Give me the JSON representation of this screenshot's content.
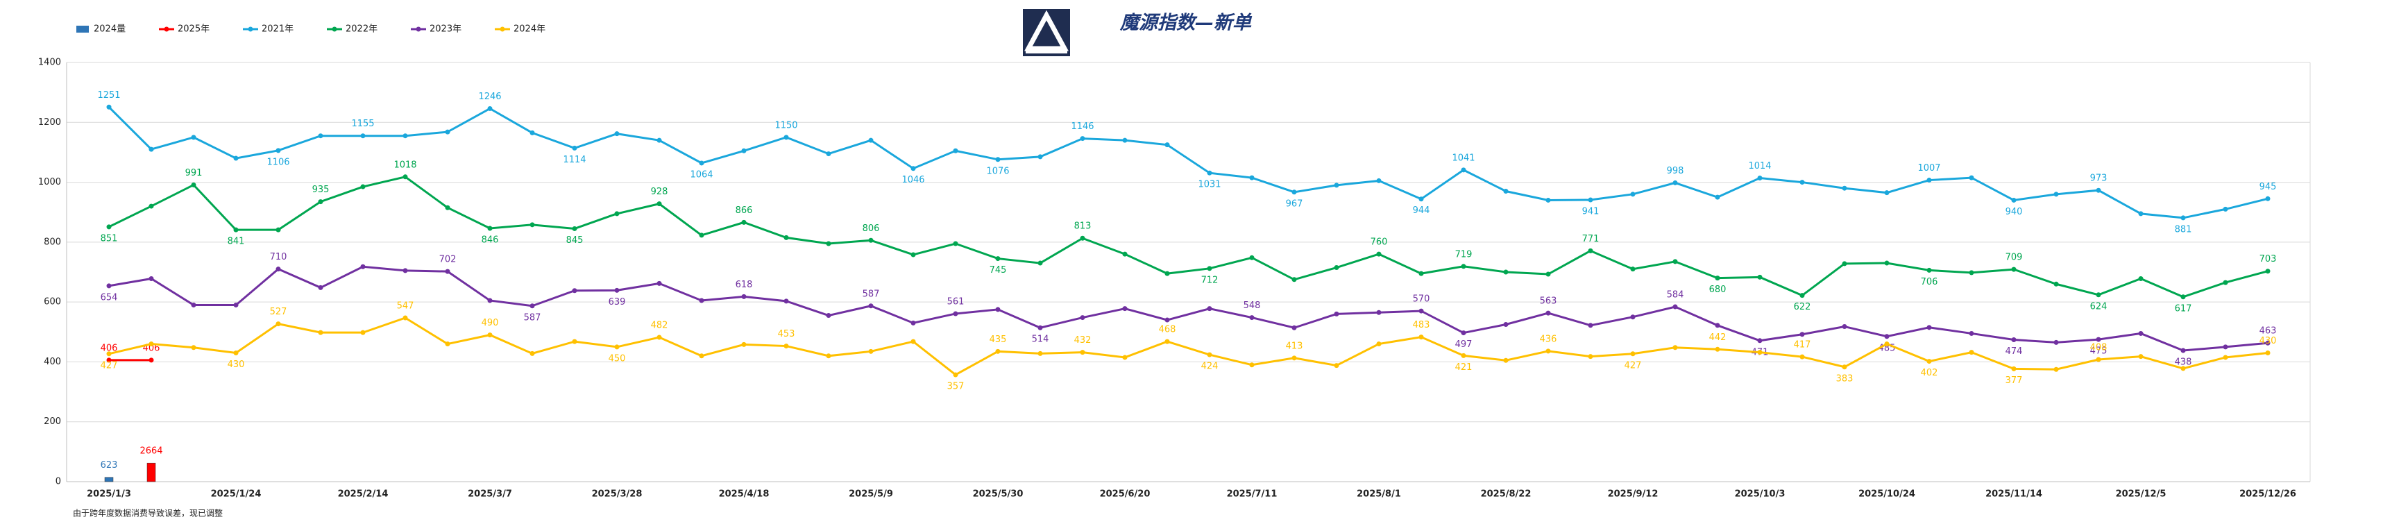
{
  "chart_data": {
    "type": "line",
    "title": "魔源指数—新单",
    "footnote": "由于跨年度数据消费导致误差，现已调整",
    "legend": "top-left",
    "grid": true,
    "categories": [
      "2025/1/3",
      null,
      null,
      "2025/1/24",
      null,
      null,
      "2025/2/14",
      null,
      null,
      "2025/3/7",
      null,
      null,
      "2025/3/28",
      null,
      null,
      "2025/4/18",
      null,
      null,
      "2025/5/9",
      null,
      null,
      "2025/5/30",
      null,
      null,
      "2025/6/20",
      null,
      null,
      "2025/7/11",
      null,
      null,
      "2025/8/1",
      null,
      null,
      "2025/8/22",
      null,
      null,
      "2025/9/12",
      null,
      null,
      "2025/10/3",
      null,
      null,
      "2025/10/24",
      null,
      null,
      "2025/11/14",
      null,
      null,
      "2025/12/5",
      null,
      null,
      "2025/12/26"
    ],
    "ylim": [
      0,
      1400
    ],
    "yticks": [
      0,
      200,
      400,
      600,
      800,
      1000,
      1200,
      1400
    ],
    "y2lim": [
      0,
      60000
    ],
    "series": [
      {
        "name": "2024量",
        "type": "bar",
        "axis": "y2",
        "color": "#2e75b6",
        "values": [
          623,
          null,
          null,
          null,
          null,
          null,
          null,
          null,
          null,
          null,
          null,
          null,
          null,
          null,
          null,
          null,
          null,
          null,
          null,
          null,
          null,
          null,
          null,
          null,
          null,
          null,
          null,
          null,
          null,
          null,
          null,
          null,
          null,
          null,
          null,
          null,
          null,
          null,
          null,
          null,
          null,
          null,
          null,
          null,
          null,
          null,
          null,
          null,
          null,
          null,
          null,
          null
        ],
        "value_labels": [
          "623",
          null,
          null,
          null,
          null,
          null,
          null,
          null,
          null,
          null,
          null,
          null,
          null,
          null,
          null,
          null,
          null,
          null,
          null,
          null,
          null,
          null,
          null,
          null,
          null,
          null,
          null,
          null,
          null,
          null,
          null,
          null,
          null,
          null,
          null,
          null,
          null,
          null,
          null,
          null,
          null,
          null,
          null,
          null,
          null,
          null,
          null,
          null,
          null,
          null,
          null,
          null
        ]
      },
      {
        "type": "bar",
        "axis": "y2",
        "color": "#ff0000",
        "values": [
          null,
          2664,
          null,
          null,
          null,
          null,
          null,
          null,
          null,
          null,
          null,
          null,
          null,
          null,
          null,
          null,
          null,
          null,
          null,
          null,
          null,
          null,
          null,
          null,
          null,
          null,
          null,
          null,
          null,
          null,
          null,
          null,
          null,
          null,
          null,
          null,
          null,
          null,
          null,
          null,
          null,
          null,
          null,
          null,
          null,
          null,
          null,
          null,
          null,
          null,
          null,
          null
        ],
        "value_labels": [
          null,
          "2664",
          null,
          null,
          null,
          null,
          null,
          null,
          null,
          null,
          null,
          null,
          null,
          null,
          null,
          null,
          null,
          null,
          null,
          null,
          null,
          null,
          null,
          null,
          null,
          null,
          null,
          null,
          null,
          null,
          null,
          null,
          null,
          null,
          null,
          null,
          null,
          null,
          null,
          null,
          null,
          null,
          null,
          null,
          null,
          null,
          null,
          null,
          null,
          null,
          null,
          null
        ]
      },
      {
        "name": "2025年",
        "color": "#ff0000",
        "values": [
          406,
          406,
          null,
          null,
          null,
          null,
          null,
          null,
          null,
          null,
          null,
          null,
          null,
          null,
          null,
          null,
          null,
          null,
          null,
          null,
          null,
          null,
          null,
          null,
          null,
          null,
          null,
          null,
          null,
          null,
          null,
          null,
          null,
          null,
          null,
          null,
          null,
          null,
          null,
          null,
          null,
          null,
          null,
          null,
          null,
          null,
          null,
          null,
          null,
          null,
          null,
          null
        ],
        "value_labels": [
          "406",
          "406",
          null,
          null,
          null,
          null,
          null,
          null,
          null,
          null,
          null,
          null,
          null,
          null,
          null,
          null,
          null,
          null,
          null,
          null,
          null,
          null,
          null,
          null,
          null,
          null,
          null,
          null,
          null,
          null,
          null,
          null,
          null,
          null,
          null,
          null,
          null,
          null,
          null,
          null,
          null,
          null,
          null,
          null,
          null,
          null,
          null,
          null,
          null,
          null,
          null,
          null
        ]
      },
      {
        "name": "2021年",
        "color": "#1aa7dc",
        "values": [
          1251,
          1110,
          1150,
          1080,
          1106,
          1155,
          1155,
          1155,
          1168,
          1246,
          1165,
          1114,
          1162,
          1140,
          1064,
          1105,
          1150,
          1095,
          1140,
          1046,
          1105,
          1076,
          1085,
          1146,
          1140,
          1125,
          1031,
          1015,
          967,
          990,
          1005,
          944,
          1041,
          970,
          940,
          941,
          960,
          998,
          950,
          1014,
          1000,
          980,
          965,
          1007,
          1015,
          940,
          960,
          973,
          895,
          881,
          910,
          945
        ],
        "value_labels": [
          "1251",
          null,
          null,
          null,
          "1106",
          null,
          "1155",
          null,
          null,
          "1246",
          null,
          "1114",
          null,
          null,
          "1064",
          null,
          "1150",
          null,
          null,
          "1046",
          null,
          "1076",
          null,
          "1146",
          null,
          null,
          "1031",
          null,
          "967",
          null,
          null,
          "944",
          "1041",
          null,
          null,
          "941",
          null,
          "998",
          null,
          "1014",
          null,
          null,
          null,
          "1007",
          null,
          "940",
          null,
          "973",
          null,
          "881",
          null,
          "945"
        ]
      },
      {
        "name": "2022年",
        "color": "#00a650",
        "values": [
          851,
          920,
          991,
          841,
          841,
          935,
          985,
          1018,
          915,
          846,
          858,
          845,
          895,
          928,
          823,
          866,
          815,
          795,
          806,
          758,
          795,
          745,
          730,
          813,
          760,
          695,
          712,
          748,
          675,
          715,
          760,
          695,
          719,
          700,
          693,
          771,
          710,
          735,
          680,
          683,
          622,
          728,
          730,
          706,
          698,
          709,
          660,
          624,
          678,
          617,
          665,
          703
        ],
        "value_labels": [
          "851",
          null,
          "991",
          "841",
          null,
          "935",
          null,
          "1018",
          null,
          "846",
          null,
          "845",
          null,
          "928",
          null,
          "866",
          null,
          null,
          "806",
          null,
          null,
          "745",
          null,
          "813",
          null,
          null,
          "712",
          null,
          null,
          null,
          "760",
          null,
          "719",
          null,
          null,
          "771",
          null,
          null,
          "680",
          null,
          "622",
          null,
          null,
          "706",
          null,
          "709",
          null,
          "624",
          null,
          "617",
          null,
          "703"
        ]
      },
      {
        "name": "2023年",
        "color": "#7030a0",
        "values": [
          654,
          678,
          590,
          590,
          710,
          648,
          718,
          705,
          702,
          605,
          587,
          638,
          639,
          662,
          605,
          618,
          603,
          555,
          587,
          530,
          561,
          575,
          514,
          548,
          578,
          540,
          578,
          548,
          514,
          560,
          565,
          570,
          497,
          525,
          563,
          522,
          550,
          584,
          522,
          471,
          492,
          518,
          485,
          515,
          495,
          474,
          465,
          475,
          495,
          438,
          450,
          463
        ],
        "value_labels": [
          "654",
          null,
          null,
          null,
          "710",
          null,
          null,
          null,
          "702",
          null,
          "587",
          null,
          "639",
          null,
          null,
          "618",
          null,
          null,
          "587",
          null,
          "561",
          null,
          "514",
          null,
          null,
          null,
          null,
          "548",
          null,
          null,
          null,
          "570",
          "497",
          null,
          "563",
          null,
          null,
          "584",
          null,
          "471",
          null,
          null,
          "485",
          null,
          null,
          "474",
          null,
          "475",
          null,
          "438",
          null,
          "463"
        ]
      },
      {
        "name": "2024年",
        "color": "#ffc000",
        "values": [
          427,
          460,
          448,
          430,
          527,
          498,
          498,
          547,
          460,
          490,
          428,
          468,
          450,
          482,
          420,
          458,
          453,
          420,
          435,
          468,
          357,
          435,
          428,
          432,
          415,
          468,
          424,
          390,
          413,
          388,
          460,
          483,
          421,
          405,
          436,
          418,
          427,
          448,
          442,
          432,
          417,
          383,
          460,
          402,
          432,
          377,
          375,
          408,
          418,
          378,
          415,
          430
        ],
        "value_labels": [
          "427",
          null,
          null,
          "430",
          "527",
          null,
          null,
          "547",
          null,
          "490",
          null,
          null,
          "450",
          "482",
          null,
          null,
          "453",
          null,
          null,
          null,
          "357",
          "435",
          null,
          "432",
          null,
          "468",
          "424",
          null,
          "413",
          null,
          null,
          "483",
          "421",
          null,
          "436",
          null,
          "427",
          null,
          "442",
          null,
          "417",
          "383",
          null,
          "402",
          null,
          "377",
          null,
          "408",
          null,
          null,
          null,
          "430"
        ]
      }
    ]
  }
}
